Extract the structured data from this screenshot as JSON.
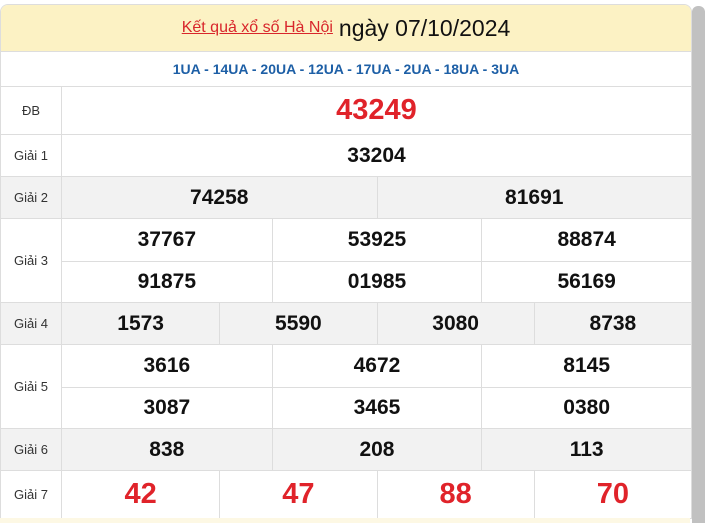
{
  "header": {
    "link": "Kết quả xổ số Hà Nội",
    "date": "ngày 07/10/2024"
  },
  "codes": "1UA - 14UA - 20UA - 12UA - 17UA - 2UA - 18UA - 3UA",
  "prizes": [
    {
      "label": "ĐB",
      "numbers": [
        "43249"
      ]
    },
    {
      "label": "Giải 1",
      "numbers": [
        "33204"
      ]
    },
    {
      "label": "Giải 2",
      "numbers": [
        "74258",
        "81691"
      ]
    },
    {
      "label": "Giải 3",
      "numbers": [
        "37767",
        "53925",
        "88874",
        "91875",
        "01985",
        "56169"
      ]
    },
    {
      "label": "Giải 4",
      "numbers": [
        "1573",
        "5590",
        "3080",
        "8738"
      ]
    },
    {
      "label": "Giải 5",
      "numbers": [
        "3616",
        "4672",
        "8145",
        "3087",
        "3465",
        "0380"
      ]
    },
    {
      "label": "Giải 6",
      "numbers": [
        "838",
        "208",
        "113"
      ]
    },
    {
      "label": "Giải 7",
      "numbers": [
        "42",
        "47",
        "88",
        "70"
      ]
    }
  ],
  "colors": {
    "accent_red": "#e0232a",
    "code_blue": "#1d5fa6",
    "header_bg": "#fcf2c4"
  }
}
